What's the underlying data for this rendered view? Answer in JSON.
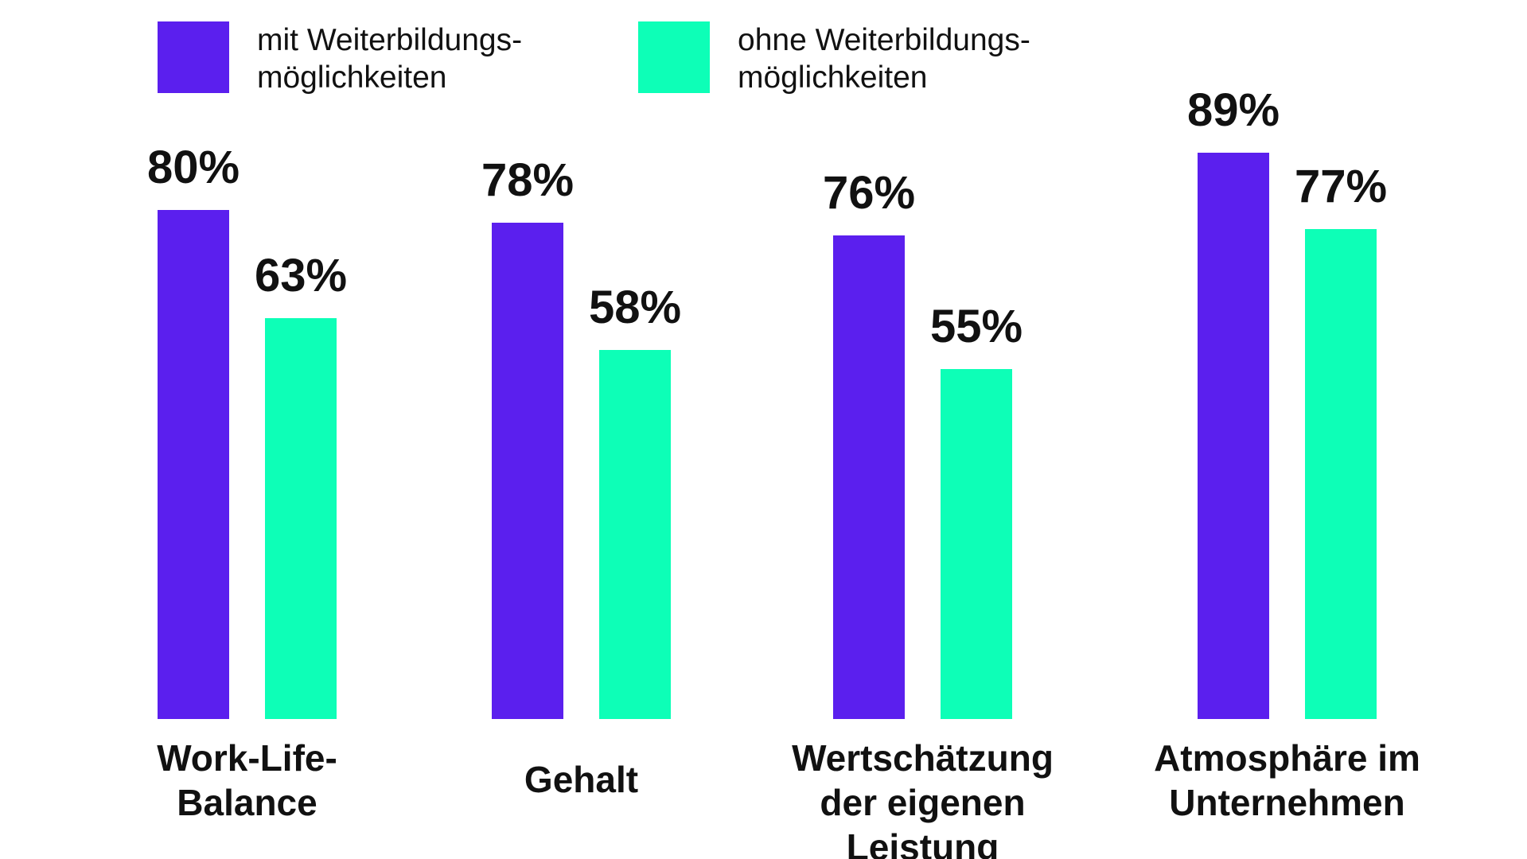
{
  "colors": {
    "series_1": "#5b1fee",
    "series_2": "#0dffb7",
    "text": "#111111",
    "background": "#ffffff"
  },
  "legend": [
    {
      "lines": [
        "mit Weiterbildungs-",
        "möglichkeiten"
      ]
    },
    {
      "lines": [
        "ohne Weiterbildungs-",
        "möglichkeiten"
      ]
    }
  ],
  "chart_data": {
    "type": "bar",
    "orientation": "vertical",
    "grouped": true,
    "unit": "%",
    "categories": [
      [
        "Work-Life-",
        "Balance"
      ],
      [
        "Gehalt"
      ],
      [
        "Wertschätzung",
        "der eigenen",
        "Leistung"
      ],
      [
        "Atmosphäre im",
        "Unternehmen"
      ]
    ],
    "series": [
      {
        "name": "mit Weiterbildungsmöglichkeiten",
        "values": [
          80,
          78,
          76,
          89
        ]
      },
      {
        "name": "ohne Weiterbildungsmöglichkeiten",
        "values": [
          63,
          58,
          55,
          77
        ]
      }
    ],
    "value_labels": [
      [
        "80%",
        "78%",
        "76%",
        "89%"
      ],
      [
        "63%",
        "58%",
        "55%",
        "77%"
      ]
    ],
    "ylim": [
      0,
      100
    ],
    "grid": false,
    "axes_visible": false,
    "legend_position": "top-left"
  }
}
